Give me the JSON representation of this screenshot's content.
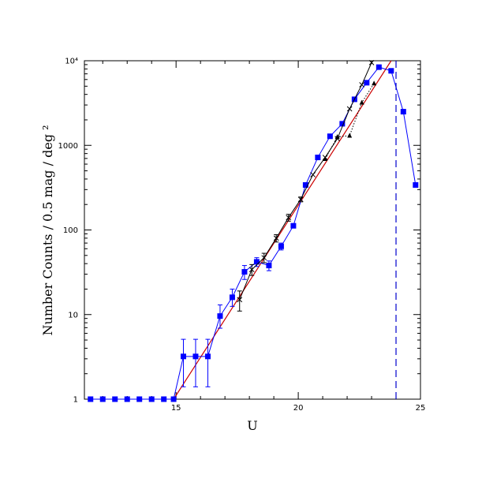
{
  "chart_data": {
    "type": "scatter",
    "xlabel": "U",
    "ylabel": "Number Counts / 0.5 mag / deg ²",
    "xlim": [
      11.25,
      25
    ],
    "ylim": [
      1,
      10000
    ],
    "yscale": "log",
    "x_ticks": [
      15,
      20,
      25
    ],
    "x_tick_labels": [
      "15",
      "20",
      "25"
    ],
    "y_ticks": [
      1,
      10,
      100,
      1000,
      10000
    ],
    "y_tick_labels": [
      "1",
      "10",
      "100",
      "1000",
      "10⁴"
    ],
    "grid": false,
    "series": [
      {
        "color": "#0000ff",
        "marker": "square",
        "x": [
          11.5,
          12.0,
          12.5,
          13.0,
          13.5,
          14.0,
          14.5,
          14.9,
          15.3,
          15.8,
          16.3,
          16.8,
          17.3,
          17.8,
          18.3,
          18.8,
          19.3,
          19.8,
          20.3,
          20.8,
          21.3,
          21.8,
          22.3,
          22.8,
          23.3,
          23.8,
          24.3,
          24.8
        ],
        "y": [
          1,
          1,
          1,
          1,
          1,
          1,
          1,
          1,
          3.2,
          3.2,
          3.2,
          9.6,
          16,
          32,
          42,
          38,
          64,
          112,
          340,
          720,
          1280,
          1800,
          3500,
          5500,
          8400,
          7600,
          2500,
          340
        ],
        "yerr_low": [
          null,
          null,
          null,
          null,
          null,
          null,
          null,
          null,
          1.4,
          1.4,
          1.4,
          6.9,
          12.5,
          26,
          37,
          33,
          58,
          null,
          null,
          null,
          null,
          null,
          null,
          null,
          null,
          null,
          null,
          null
        ],
        "yerr_high": [
          null,
          null,
          null,
          null,
          null,
          null,
          null,
          null,
          5.1,
          5.1,
          5.1,
          13,
          20,
          38,
          47,
          43,
          70,
          null,
          null,
          null,
          null,
          null,
          null,
          null,
          null,
          null,
          null,
          null
        ]
      },
      {
        "color": "#000000",
        "marker": "x",
        "x": [
          17.6,
          18.1,
          18.6,
          19.1,
          19.6,
          20.1,
          20.6,
          21.1,
          21.6,
          22.1,
          22.6,
          23.0
        ],
        "y": [
          15,
          34,
          47,
          80,
          140,
          230,
          450,
          720,
          1200,
          2700,
          5200,
          9500
        ],
        "yerr_low": [
          11,
          29,
          41,
          72,
          127,
          215,
          null,
          null,
          null,
          null,
          null,
          null
        ],
        "yerr_high": [
          19,
          39,
          53,
          88,
          153,
          245,
          null,
          null,
          null,
          null,
          null,
          null
        ]
      },
      {
        "color": "#000000",
        "marker": "triangle",
        "dotted": true,
        "x": [
          21.1,
          21.6,
          22.1,
          22.6,
          23.1
        ],
        "y": [
          690,
          1260,
          1300,
          3200,
          5400
        ]
      }
    ],
    "fit_line": {
      "color": "#cc0000",
      "x": [
        14.9,
        23.8
      ],
      "y": [
        1,
        10000
      ]
    },
    "limit_line": {
      "color": "#0000cc",
      "dashed": true,
      "x": 24.0
    }
  }
}
